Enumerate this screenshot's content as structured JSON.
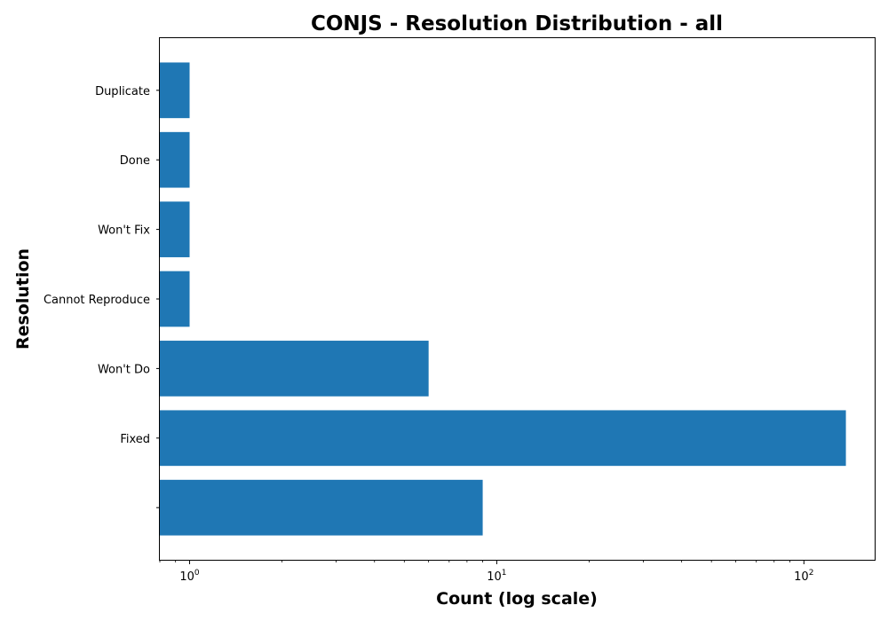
{
  "chart_data": {
    "type": "bar",
    "orientation": "horizontal",
    "title": "CONJS - Resolution Distribution - all",
    "xlabel": "Count (log scale)",
    "ylabel": "Resolution",
    "x_scale": "log",
    "xlim": [
      0.8,
      170
    ],
    "x_tick_labels": [
      {
        "value": 1,
        "base": "10",
        "exp": "0"
      },
      {
        "value": 10,
        "base": "10",
        "exp": "1"
      },
      {
        "value": 100,
        "base": "10",
        "exp": "2"
      }
    ],
    "categories": [
      "",
      "Fixed",
      "Won't Do",
      "Cannot Reproduce",
      "Won't Fix",
      "Done",
      "Duplicate"
    ],
    "values": [
      9,
      137,
      6,
      1,
      1,
      1,
      1
    ],
    "bar_color": "#1f77b4",
    "grid": false,
    "legend": "none"
  }
}
